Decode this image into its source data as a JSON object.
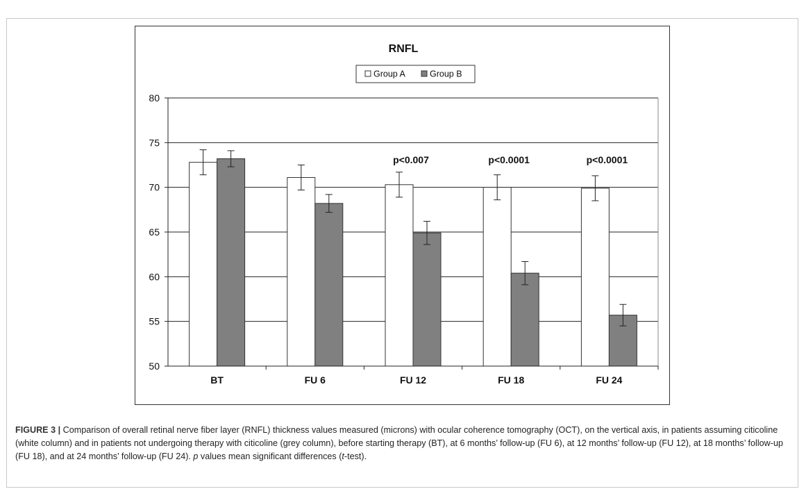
{
  "chart_data": {
    "type": "bar",
    "title": "RNFL",
    "categories": [
      "BT",
      "FU 6",
      "FU 12",
      "FU 18",
      "FU 24"
    ],
    "series": [
      {
        "name": "Group A",
        "values": [
          72.8,
          71.1,
          70.3,
          70.0,
          69.9
        ],
        "errors": [
          1.4,
          1.4,
          1.4,
          1.4,
          1.4
        ],
        "color": "#ffffff"
      },
      {
        "name": "Group B",
        "values": [
          73.2,
          68.2,
          64.9,
          60.4,
          55.7
        ],
        "errors": [
          0.9,
          1.0,
          1.3,
          1.3,
          1.2
        ],
        "color": "#808080"
      }
    ],
    "annotations": [
      "",
      "",
      "p<0.007",
      "p<0.0001",
      "p<0.0001"
    ],
    "ylim": [
      50,
      80
    ],
    "yticks": [
      50,
      55,
      60,
      65,
      70,
      75,
      80
    ],
    "grid": true,
    "legend_position": "top-center"
  },
  "caption": {
    "figure_label": "FIGURE 3 |",
    "text_1": " Comparison of overall retinal nerve fiber layer (RNFL) thickness values measured (microns) with ocular coherence tomography (OCT), on the vertical axis, in patients assuming citicoline (white column) and in patients not undergoing therapy with citicoline (grey column), before starting therapy (BT), at 6 months’ follow-up (FU 6), at 12 months’ follow-up (FU 12), at 18 months’ follow-up (FU 18), and at 24 months’ follow-up (FU 24). ",
    "p_letter": "p",
    "text_2": " values mean significant differences (",
    "t_letter": "t",
    "text_3": "-test)."
  }
}
